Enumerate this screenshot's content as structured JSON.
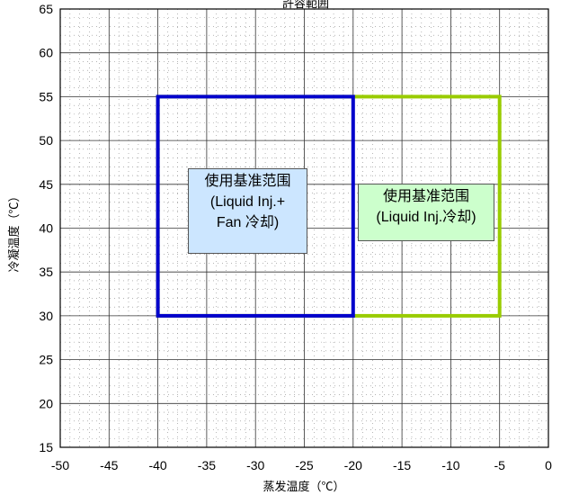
{
  "chart_data": {
    "type": "area",
    "title": "許容範囲",
    "xlabel": "蒸发温度（℃）",
    "ylabel": "冷凝温度（℃）",
    "xlim": [
      -50,
      0
    ],
    "ylim": [
      15,
      65
    ],
    "x_ticks": [
      -50,
      -45,
      -40,
      -35,
      -30,
      -25,
      -20,
      -15,
      -10,
      -5,
      0
    ],
    "y_ticks": [
      15,
      20,
      25,
      30,
      35,
      40,
      45,
      50,
      55,
      60,
      65
    ],
    "grid": true,
    "series": [
      {
        "name": "使用基准范围 (Liquid Inj.冷却)",
        "color": "#99cc00",
        "x_range": [
          -40,
          -5
        ],
        "y_range": [
          30,
          55
        ],
        "label_lines": [
          "使用基准范围",
          "(Liquid Inj.冷却)"
        ],
        "label_bg": "#ccffcc"
      },
      {
        "name": "使用基准范围 (Liquid Inj.+ Fan 冷却)",
        "color": "#0000cc",
        "x_range": [
          -40,
          -20
        ],
        "y_range": [
          30,
          55
        ],
        "label_lines": [
          "使用基准范围",
          "(Liquid Inj.+",
          "Fan 冷却)"
        ],
        "label_bg": "#cce6ff"
      }
    ]
  }
}
